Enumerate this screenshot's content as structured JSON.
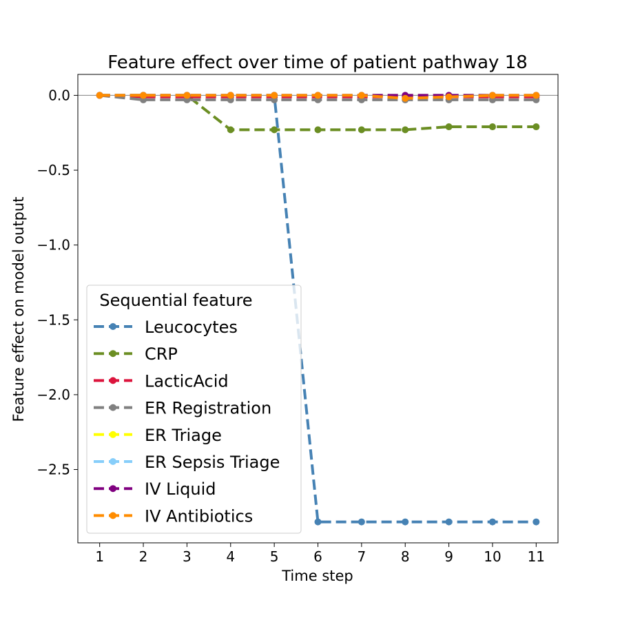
{
  "chart_data": {
    "type": "line",
    "title": "Feature effect over time of patient pathway 18",
    "xlabel": "Time step",
    "ylabel": "Feature effect on model output",
    "x": [
      1,
      2,
      3,
      4,
      5,
      6,
      7,
      8,
      9,
      10,
      11
    ],
    "xlim": [
      0.5,
      11.5
    ],
    "ylim": [
      -2.99,
      0.14
    ],
    "xticks": [
      1,
      2,
      3,
      4,
      5,
      6,
      7,
      8,
      9,
      10,
      11
    ],
    "xtick_labels": [
      "1",
      "2",
      "3",
      "4",
      "5",
      "6",
      "7",
      "8",
      "9",
      "10",
      "11"
    ],
    "yticks": [
      0.0,
      -0.5,
      -1.0,
      -1.5,
      -2.0,
      -2.5
    ],
    "ytick_labels": [
      "0.0",
      "−0.5",
      "−1.0",
      "−1.5",
      "−2.0",
      "−2.5"
    ],
    "reference_line": 0,
    "grid": false,
    "legend": {
      "title": "Sequential feature",
      "placement": "lower-left"
    },
    "series": [
      {
        "name": "Leucocytes",
        "color": "#4682b4",
        "values": [
          0,
          0,
          0,
          0,
          0,
          -2.85,
          -2.85,
          -2.85,
          -2.85,
          -2.85,
          -2.85
        ]
      },
      {
        "name": "CRP",
        "color": "#6b8e23",
        "values": [
          0,
          0,
          0,
          -0.23,
          -0.23,
          -0.23,
          -0.23,
          -0.23,
          -0.21,
          -0.21,
          -0.21
        ]
      },
      {
        "name": "LacticAcid",
        "color": "#dc143c",
        "values": [
          0,
          -0.01,
          -0.01,
          -0.01,
          -0.01,
          -0.01,
          -0.01,
          -0.01,
          -0.01,
          -0.01,
          -0.01
        ]
      },
      {
        "name": "ER Registration",
        "color": "#808080",
        "values": [
          0,
          -0.03,
          -0.03,
          -0.03,
          -0.03,
          -0.03,
          -0.03,
          -0.03,
          -0.03,
          -0.03,
          -0.03
        ]
      },
      {
        "name": "ER Triage",
        "color": "#ffff00",
        "values": [
          0,
          0,
          0,
          0,
          0,
          0,
          0,
          0,
          0,
          0,
          0
        ]
      },
      {
        "name": "ER Sepsis Triage",
        "color": "#87cefa",
        "values": [
          0,
          0,
          0,
          0,
          0,
          0,
          0,
          0,
          0,
          0,
          0
        ]
      },
      {
        "name": "IV Liquid",
        "color": "#800080",
        "values": [
          0,
          0,
          0,
          0,
          0,
          0,
          0,
          0,
          0,
          0,
          0
        ]
      },
      {
        "name": "IV Antibiotics",
        "color": "#ff8c00",
        "values": [
          0,
          0,
          0,
          0,
          0,
          0,
          0,
          -0.02,
          -0.01,
          0,
          0
        ]
      }
    ]
  }
}
